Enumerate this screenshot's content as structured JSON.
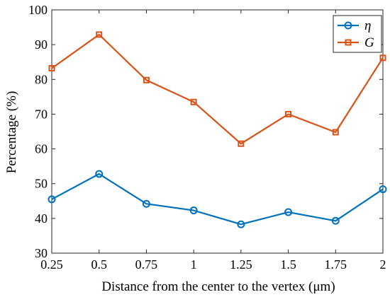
{
  "chart_data": {
    "type": "line",
    "x": [
      0.25,
      0.5,
      0.75,
      1,
      1.25,
      1.5,
      1.75,
      2
    ],
    "x_tick_labels": [
      "0.25",
      "0.5",
      "0.75",
      "1",
      "1.25",
      "1.5",
      "1.75",
      "2"
    ],
    "y_ticks": [
      30,
      40,
      50,
      60,
      70,
      80,
      90,
      100
    ],
    "xlim": [
      0.25,
      2
    ],
    "ylim": [
      30,
      100
    ],
    "xlabel": "Distance from the center to the vertex (μm)",
    "ylabel": "Percentage (%)",
    "grid": false,
    "legend_position": "top-right",
    "series": [
      {
        "name": "η",
        "marker": "circle",
        "color": "#0072BD",
        "values": [
          45.5,
          52.8,
          44.2,
          42.3,
          38.3,
          41.8,
          39.3,
          48.4
        ]
      },
      {
        "name": "G",
        "marker": "square",
        "color": "#D95319",
        "values": [
          83.2,
          92.9,
          79.8,
          73.5,
          61.5,
          70.0,
          64.8,
          86.2
        ]
      }
    ]
  }
}
